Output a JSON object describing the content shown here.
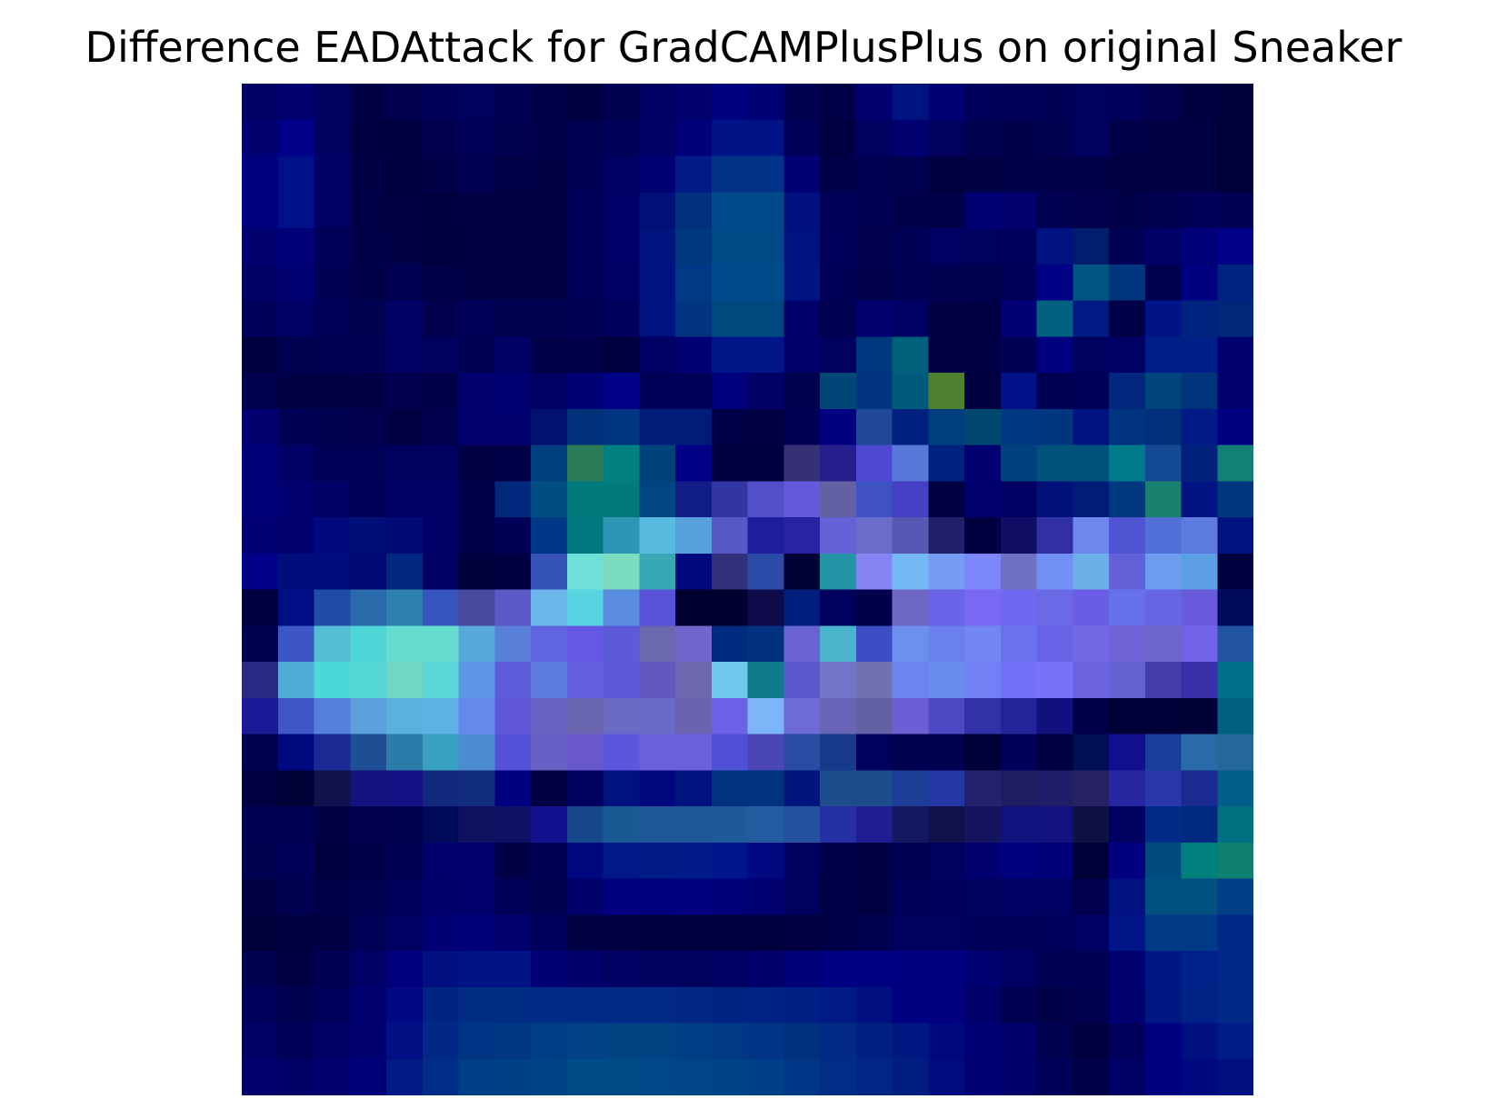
{
  "chart_data": {
    "type": "heatmap",
    "title": "Difference EADAttack for GradCAMPlusPlus on original Sneaker",
    "xlabel": "",
    "ylabel": "",
    "axes_visible": false,
    "grid": false,
    "legend": "none",
    "rows": 28,
    "cols": 28,
    "colormap": "blue-cyan-violet overlay",
    "description_of_values": "pixel colors (hex) per cell, row-major from top-left",
    "cells": [
      [
        "#000066",
        "#000070",
        "#00005e",
        "#000046",
        "#00004f",
        "#00005a",
        "#00005e",
        "#000054",
        "#00004a",
        "#000040",
        "#000050",
        "#000062",
        "#00006e",
        "#000080",
        "#000076",
        "#000050",
        "#000048",
        "#000070",
        "#001480",
        "#000076",
        "#00005c",
        "#00005a",
        "#000056",
        "#000060",
        "#00005c",
        "#00004e",
        "#000040",
        "#000038"
      ],
      [
        "#000070",
        "#000088",
        "#000060",
        "#000042",
        "#000040",
        "#00004e",
        "#000058",
        "#000050",
        "#00004a",
        "#000052",
        "#00005a",
        "#000062",
        "#00007a",
        "#001488",
        "#001488",
        "#000058",
        "#000042",
        "#000060",
        "#000070",
        "#00005e",
        "#000050",
        "#00004a",
        "#000050",
        "#000060",
        "#000048",
        "#000044",
        "#000042",
        "#000038"
      ],
      [
        "#000080",
        "#001088",
        "#000066",
        "#000046",
        "#00003e",
        "#000048",
        "#000052",
        "#000048",
        "#000046",
        "#000056",
        "#000062",
        "#000074",
        "#001a86",
        "#003388",
        "#003388",
        "#000074",
        "#00004a",
        "#000052",
        "#000050",
        "#000040",
        "#000046",
        "#00004a",
        "#000048",
        "#000048",
        "#000044",
        "#000042",
        "#000042",
        "#000038"
      ],
      [
        "#000080",
        "#001088",
        "#000062",
        "#000048",
        "#000042",
        "#000040",
        "#000044",
        "#000044",
        "#000044",
        "#000058",
        "#000068",
        "#001078",
        "#00307e",
        "#004a8a",
        "#004a8a",
        "#00107c",
        "#000058",
        "#000052",
        "#00004a",
        "#000048",
        "#000074",
        "#00006e",
        "#000052",
        "#00004e",
        "#000048",
        "#000050",
        "#000058",
        "#000054"
      ],
      [
        "#000070",
        "#000078",
        "#000058",
        "#000048",
        "#000046",
        "#000040",
        "#000042",
        "#000044",
        "#000046",
        "#000058",
        "#000068",
        "#001480",
        "#00387e",
        "#004a88",
        "#004a88",
        "#001280",
        "#00005c",
        "#00004e",
        "#000056",
        "#000062",
        "#000060",
        "#00005c",
        "#001282",
        "#001e6e",
        "#000054",
        "#000066",
        "#000078",
        "#000088"
      ],
      [
        "#000066",
        "#000072",
        "#000056",
        "#000048",
        "#000052",
        "#000048",
        "#000046",
        "#000044",
        "#000046",
        "#000058",
        "#000064",
        "#001282",
        "#003a86",
        "#004c8a",
        "#004c8a",
        "#001484",
        "#000058",
        "#00004c",
        "#000054",
        "#000050",
        "#000050",
        "#00005a",
        "#000086",
        "#005580",
        "#00367e",
        "#000050",
        "#000080",
        "#002280"
      ],
      [
        "#00005a",
        "#000066",
        "#000058",
        "#000050",
        "#000066",
        "#00004e",
        "#00005a",
        "#000050",
        "#000050",
        "#000054",
        "#00005c",
        "#001280",
        "#00347e",
        "#004880",
        "#004880",
        "#00006a",
        "#000052",
        "#000070",
        "#000064",
        "#000046",
        "#000044",
        "#000076",
        "#00607e",
        "#001a84",
        "#000048",
        "#001488",
        "#00237f",
        "#00287a"
      ],
      [
        "#000040",
        "#000050",
        "#000052",
        "#000056",
        "#000062",
        "#000060",
        "#000054",
        "#000066",
        "#000048",
        "#00004a",
        "#000040",
        "#000062",
        "#000074",
        "#001588",
        "#001588",
        "#000068",
        "#000060",
        "#00387e",
        "#00607c",
        "#000046",
        "#000046",
        "#000054",
        "#000080",
        "#00005e",
        "#000064",
        "#001e88",
        "#002088",
        "#000070"
      ],
      [
        "#000050",
        "#000044",
        "#000046",
        "#000046",
        "#00004e",
        "#000048",
        "#000070",
        "#000074",
        "#000062",
        "#000076",
        "#000088",
        "#000058",
        "#000058",
        "#00007c",
        "#000066",
        "#000050",
        "#004677",
        "#003380",
        "#005a7c",
        "#4e8030",
        "#000040",
        "#001088",
        "#000052",
        "#000058",
        "#00267d",
        "#00447c",
        "#00347a",
        "#000070"
      ],
      [
        "#000070",
        "#000056",
        "#000050",
        "#00004e",
        "#000044",
        "#00004e",
        "#000070",
        "#000070",
        "#00126e",
        "#00307a",
        "#003582",
        "#001c78",
        "#001c78",
        "#000048",
        "#000044",
        "#000054",
        "#000080",
        "#20489a",
        "#00207f",
        "#003e80",
        "#004870",
        "#003682",
        "#00367e",
        "#001280",
        "#003482",
        "#00307a",
        "#001a86",
        "#000080"
      ],
      [
        "#00007a",
        "#000066",
        "#000058",
        "#000058",
        "#000060",
        "#000060",
        "#000046",
        "#000048",
        "#003e80",
        "#2c7c5a",
        "#008080",
        "#00427a",
        "#000086",
        "#000040",
        "#000040",
        "#363074",
        "#251e8c",
        "#4c48d2",
        "#5878da",
        "#00227f",
        "#000070",
        "#00407e",
        "#00527c",
        "#00527c",
        "#007a8a",
        "#144a94",
        "#00207c",
        "#128074"
      ],
      [
        "#00007a",
        "#000070",
        "#000064",
        "#00005a",
        "#000062",
        "#000064",
        "#000048",
        "#00287c",
        "#004d84",
        "#007a7c",
        "#007a7c",
        "#004682",
        "#121e88",
        "#3236a4",
        "#5250c8",
        "#6458dc",
        "#6460a4",
        "#3e52c4",
        "#4640c4",
        "#000044",
        "#000070",
        "#000064",
        "#00127a",
        "#001c78",
        "#003880",
        "#1a8070",
        "#001482",
        "#00367e"
      ],
      [
        "#000074",
        "#00006e",
        "#000a7e",
        "#000e78",
        "#000a74",
        "#000066",
        "#00004a",
        "#000056",
        "#003888",
        "#00787e",
        "#2e96b4",
        "#58bade",
        "#58a0dc",
        "#5658c8",
        "#1e1e9a",
        "#2624a4",
        "#6462d6",
        "#6c6cca",
        "#5658b4",
        "#202068",
        "#000040",
        "#100e64",
        "#3030a4",
        "#6c88ee",
        "#5054d2",
        "#5070d8",
        "#5c7ae0",
        "#00127e"
      ],
      [
        "#00008a",
        "#000e7c",
        "#000c7e",
        "#000a74",
        "#002880",
        "#000062",
        "#00003c",
        "#000040",
        "#3654b8",
        "#6ee0d8",
        "#7cdcc0",
        "#38a8b6",
        "#00087e",
        "#30307c",
        "#2c4aa8",
        "#000034",
        "#2296a6",
        "#8484f2",
        "#74b8f6",
        "#789cf4",
        "#7c86fc",
        "#7070c4",
        "#7090f4",
        "#6cb0e8",
        "#6462d8",
        "#6c9ced",
        "#5ca0e4",
        "#000040"
      ],
      [
        "#000040",
        "#000e86",
        "#204ca6",
        "#2a6aaa",
        "#2e80ae",
        "#3656be",
        "#484aa0",
        "#5c58c8",
        "#6cb6ec",
        "#56d4e2",
        "#5a8ce0",
        "#5852d6",
        "#000030",
        "#000030",
        "#100c4c",
        "#001e7c",
        "#000060",
        "#00004a",
        "#6e68c4",
        "#6c64e8",
        "#7868f4",
        "#7068f0",
        "#6a6ae6",
        "#6a5ce4",
        "#6670e8",
        "#6666e4",
        "#6a5adc",
        "#000a5a"
      ],
      [
        "#000050",
        "#3c56c6",
        "#56bed4",
        "#50d6d6",
        "#66dcd0",
        "#64dcd0",
        "#58a8dc",
        "#5880d8",
        "#6064e0",
        "#6458e4",
        "#5c5ad8",
        "#6a68ae",
        "#7266ce",
        "#002a80",
        "#00307e",
        "#6a64d2",
        "#4ab4cc",
        "#3c4cc4",
        "#6c90ee",
        "#6a80ee",
        "#7286f2",
        "#6a70ee",
        "#6862e6",
        "#7468e6",
        "#7262d8",
        "#6e66cc",
        "#7262e8",
        "#2254a4"
      ],
      [
        "#2a2a84",
        "#52acd8",
        "#4ad8d8",
        "#54d6d4",
        "#72d6c4",
        "#5ad8d8",
        "#5c96e4",
        "#5c5cda",
        "#5c7ce0",
        "#645ee0",
        "#5c58d6",
        "#6458c0",
        "#6e68b0",
        "#6ec8ee",
        "#107a8c",
        "#5a5acc",
        "#7474c8",
        "#7070b0",
        "#6c84ee",
        "#6a8cee",
        "#7280f6",
        "#7070f8",
        "#7872f8",
        "#6c62e0",
        "#6462d0",
        "#463ea8",
        "#3a30a8",
        "#006e86"
      ],
      [
        "#1a1a96",
        "#3e56c6",
        "#5480dc",
        "#5ca0dc",
        "#58b2dc",
        "#5cb2e4",
        "#6688ec",
        "#6058d8",
        "#6a62c4",
        "#6a66b0",
        "#6a6ac4",
        "#6a6ac8",
        "#6a64b0",
        "#6c62e8",
        "#7cb6f8",
        "#6e6ad6",
        "#6864b8",
        "#6460a4",
        "#6c5ed4",
        "#4e48c4",
        "#3232a8",
        "#24249a",
        "#10107e",
        "#000048",
        "#000038",
        "#000038",
        "#000036",
        "#006080"
      ],
      [
        "#000050",
        "#000a80",
        "#1a2a94",
        "#1e4e94",
        "#2c7caa",
        "#38a0c0",
        "#4e8cd0",
        "#5452d8",
        "#6860c4",
        "#6858cc",
        "#5e56da",
        "#6a60dc",
        "#6a60dc",
        "#5050d6",
        "#4a46b8",
        "#2a4aa4",
        "#183a8c",
        "#000060",
        "#000050",
        "#000050",
        "#000038",
        "#000058",
        "#000044",
        "#000e56",
        "#10108e",
        "#183e9a",
        "#2a6aa8",
        "#24689a"
      ],
      [
        "#000044",
        "#000036",
        "#10124e",
        "#14127e",
        "#161286",
        "#10287e",
        "#102c7a",
        "#000080",
        "#000044",
        "#000060",
        "#00127e",
        "#000880",
        "#00127e",
        "#003280",
        "#003280",
        "#00147e",
        "#1c4c8c",
        "#1c4c8c",
        "#1c3e96",
        "#2436a6",
        "#24226e",
        "#1c1e60",
        "#1e1e68",
        "#262262",
        "#2626a0",
        "#2838aa",
        "#1a2a90",
        "#005e88"
      ],
      [
        "#000054",
        "#000056",
        "#000046",
        "#00004e",
        "#000050",
        "#000a5a",
        "#101060",
        "#101064",
        "#12128e",
        "#18488c",
        "#1a5a94",
        "#1e5898",
        "#1e5898",
        "#1e5a9a",
        "#225ca0",
        "#2650a0",
        "#2430a4",
        "#221c94",
        "#141860",
        "#10104c",
        "#141460",
        "#10127e",
        "#121280",
        "#101044",
        "#000060",
        "#002c88",
        "#002a80",
        "#007080"
      ],
      [
        "#000050",
        "#000058",
        "#000040",
        "#00004a",
        "#000052",
        "#00006c",
        "#00006e",
        "#000046",
        "#000054",
        "#000880",
        "#00188a",
        "#001a86",
        "#001a8a",
        "#00148c",
        "#000882",
        "#000060",
        "#00004a",
        "#000044",
        "#000054",
        "#00005e",
        "#000070",
        "#000080",
        "#000078",
        "#000038",
        "#000080",
        "#004a82",
        "#00807c",
        "#108070"
      ],
      [
        "#000044",
        "#000050",
        "#000048",
        "#000050",
        "#00005c",
        "#00006a",
        "#00006c",
        "#000058",
        "#000050",
        "#00006a",
        "#000080",
        "#00007e",
        "#000080",
        "#000078",
        "#000072",
        "#000060",
        "#000048",
        "#000044",
        "#00005a",
        "#00005c",
        "#000060",
        "#000064",
        "#000062",
        "#00004e",
        "#001282",
        "#005082",
        "#005082",
        "#003e86"
      ],
      [
        "#00003c",
        "#000040",
        "#000044",
        "#000058",
        "#000062",
        "#000074",
        "#00007a",
        "#000070",
        "#00005c",
        "#000046",
        "#000042",
        "#000040",
        "#000040",
        "#00003e",
        "#00003e",
        "#000042",
        "#000048",
        "#000050",
        "#000060",
        "#000060",
        "#00005a",
        "#00005a",
        "#00005c",
        "#000064",
        "#001688",
        "#003a86",
        "#003a86",
        "#002886"
      ],
      [
        "#000050",
        "#000044",
        "#000054",
        "#000066",
        "#00007c",
        "#001080",
        "#001486",
        "#001488",
        "#000074",
        "#00006a",
        "#000062",
        "#000060",
        "#00005e",
        "#000062",
        "#00006a",
        "#000078",
        "#000082",
        "#000082",
        "#000080",
        "#000080",
        "#000072",
        "#000064",
        "#000054",
        "#000056",
        "#000070",
        "#001884",
        "#002288",
        "#002888"
      ],
      [
        "#00005c",
        "#000050",
        "#00005c",
        "#000070",
        "#000882",
        "#002482",
        "#002c84",
        "#002c84",
        "#002c86",
        "#002c86",
        "#002c86",
        "#002a86",
        "#002884",
        "#002482",
        "#002284",
        "#001e84",
        "#001a84",
        "#001080",
        "#000080",
        "#00007e",
        "#000068",
        "#000052",
        "#000048",
        "#000050",
        "#000070",
        "#001882",
        "#002286",
        "#002886"
      ],
      [
        "#000064",
        "#000058",
        "#000064",
        "#000070",
        "#001084",
        "#002884",
        "#003484",
        "#003684",
        "#003e86",
        "#004284",
        "#004484",
        "#004484",
        "#003e86",
        "#003a86",
        "#003486",
        "#003080",
        "#002a84",
        "#002084",
        "#001882",
        "#000880",
        "#000074",
        "#00006a",
        "#000050",
        "#000040",
        "#00005c",
        "#000080",
        "#001080",
        "#001c86"
      ],
      [
        "#00006e",
        "#000066",
        "#00006e",
        "#000078",
        "#001a84",
        "#002e86",
        "#003e86",
        "#004084",
        "#004486",
        "#004c88",
        "#004c88",
        "#004888",
        "#004686",
        "#004488",
        "#004088",
        "#003686",
        "#002e86",
        "#002686",
        "#001e82",
        "#000c80",
        "#000074",
        "#000068",
        "#00005a",
        "#000048",
        "#000064",
        "#000080",
        "#000880",
        "#001080"
      ]
    ]
  }
}
